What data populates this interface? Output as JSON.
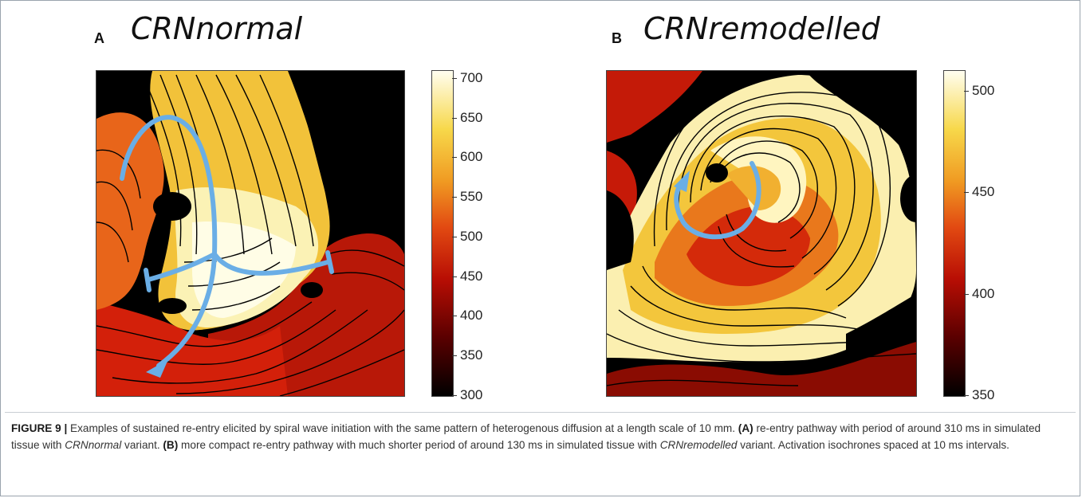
{
  "figure": {
    "panel_a": {
      "letter": "A",
      "title": "CRNnormal",
      "colorbar_ticks": [
        700,
        650,
        600,
        550,
        500,
        450,
        400,
        350,
        300
      ],
      "colorbar_range": [
        300,
        710
      ]
    },
    "panel_b": {
      "letter": "B",
      "title": "CRNremodelled",
      "colorbar_ticks": [
        500,
        450,
        400,
        350
      ],
      "colorbar_range": [
        350,
        510
      ]
    },
    "caption": {
      "label": "FIGURE 9 |",
      "text1": " Examples of sustained re-entry elicited by spiral wave initiation with the same pattern of heterogenous diffusion at a length scale of 10 mm. ",
      "a_ref": "(A)",
      "text2": " re-entry pathway with period of around 310 ms in simulated tissue with ",
      "a_variant": "CRNnormal",
      "text3": " variant. ",
      "b_ref": "(B)",
      "text4": " more compact re-entry pathway with much shorter period of around 130 ms in simulated tissue with ",
      "b_variant": "CRNremodelled",
      "text5": " variant. Activation isochrones spaced at 10 ms intervals."
    },
    "colors": {
      "arrow": "#6aaee6",
      "border": "#9aa3ad"
    }
  }
}
